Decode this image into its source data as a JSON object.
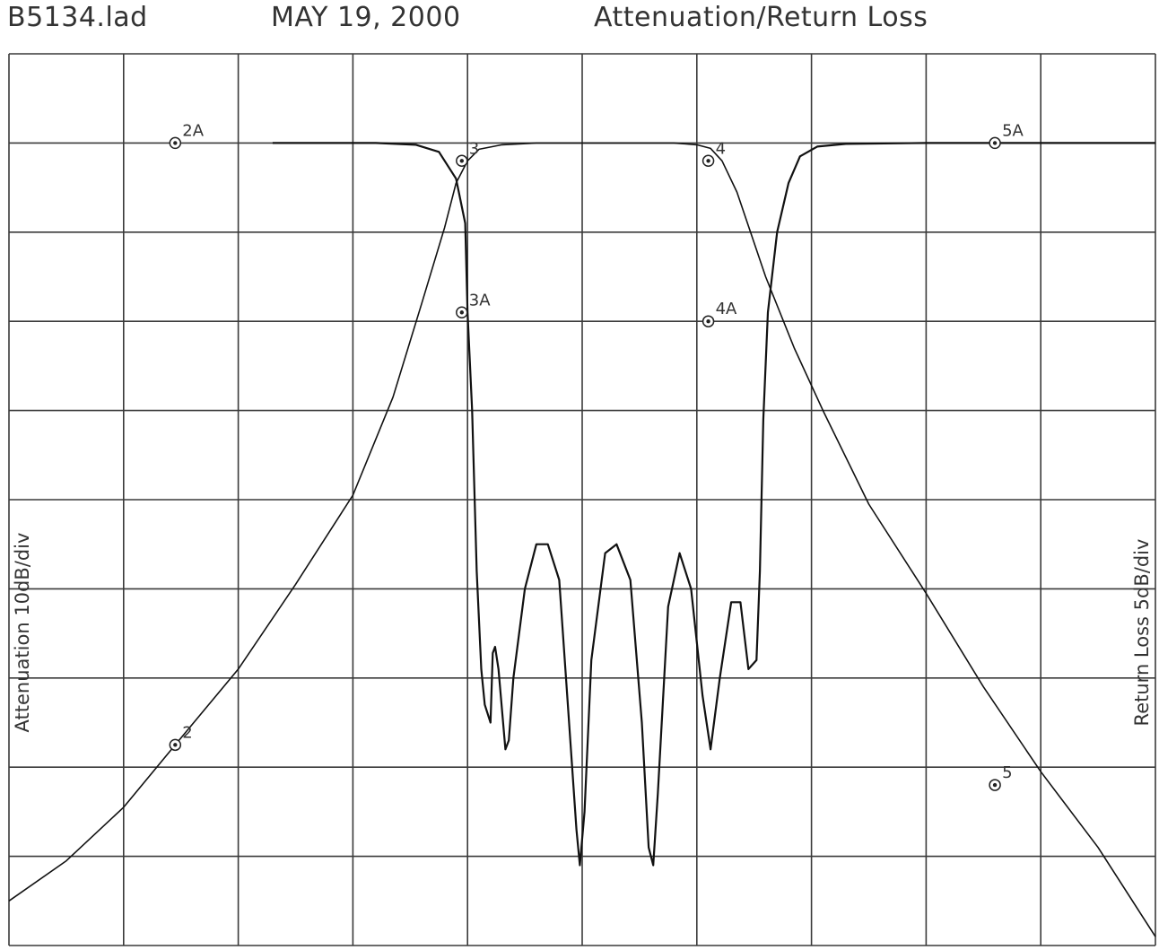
{
  "header": {
    "file": "B5134.lad",
    "date": "MAY 19, 2000",
    "title": "Attenuation/Return Loss"
  },
  "chart_data": {
    "type": "line",
    "title": "Attenuation/Return Loss",
    "ylabel_left": "Attenuation 10dB/div",
    "ylabel_right": "Return Loss 5dB/div",
    "grid": true,
    "x_divisions": 10,
    "y_divisions": 10,
    "x_range_div": [
      0,
      10
    ],
    "y_range_div": [
      0,
      10
    ],
    "series": [
      {
        "points": [
          [
            0,
            9.5
          ],
          [
            0.5,
            9.05
          ],
          [
            1,
            8.45
          ],
          [
            1.45,
            7.75
          ],
          [
            2,
            6.9
          ],
          [
            2.5,
            5.95
          ],
          [
            3,
            4.95
          ],
          [
            3.35,
            3.85
          ],
          [
            3.6,
            2.8
          ],
          [
            3.8,
            1.95
          ],
          [
            3.9,
            1.45
          ],
          [
            4.0,
            1.2
          ],
          [
            4.1,
            1.07
          ],
          [
            4.3,
            1.02
          ],
          [
            4.6,
            1.0
          ],
          [
            5,
            1.0
          ],
          [
            5.5,
            1.0
          ],
          [
            5.8,
            1.0
          ],
          [
            6.0,
            1.02
          ],
          [
            6.12,
            1.06
          ],
          [
            6.22,
            1.2
          ],
          [
            6.35,
            1.55
          ],
          [
            6.6,
            2.5
          ],
          [
            6.85,
            3.3
          ],
          [
            7.1,
            4.0
          ],
          [
            7.5,
            5.05
          ],
          [
            8,
            6.05
          ],
          [
            8.5,
            7.1
          ],
          [
            9,
            8.05
          ],
          [
            9.5,
            8.9
          ],
          [
            10,
            9.9
          ]
        ]
      },
      {
        "points": [
          [
            2.3,
            1.0
          ],
          [
            3.2,
            1.0
          ],
          [
            3.55,
            1.02
          ],
          [
            3.75,
            1.1
          ],
          [
            3.9,
            1.4
          ],
          [
            3.98,
            1.9
          ],
          [
            4.0,
            2.9
          ],
          [
            4.04,
            4.0
          ],
          [
            4.08,
            5.8
          ],
          [
            4.12,
            6.9
          ],
          [
            4.15,
            7.3
          ],
          [
            4.2,
            7.5
          ],
          [
            4.22,
            6.72
          ],
          [
            4.24,
            6.65
          ],
          [
            4.27,
            6.9
          ],
          [
            4.33,
            7.8
          ],
          [
            4.36,
            7.7
          ],
          [
            4.4,
            7.0
          ],
          [
            4.5,
            6.0
          ],
          [
            4.6,
            5.5
          ],
          [
            4.7,
            5.5
          ],
          [
            4.8,
            5.9
          ],
          [
            4.88,
            7.4
          ],
          [
            4.95,
            8.7
          ],
          [
            4.98,
            9.1
          ],
          [
            5.02,
            8.5
          ],
          [
            5.08,
            6.8
          ],
          [
            5.2,
            5.6
          ],
          [
            5.3,
            5.5
          ],
          [
            5.42,
            5.9
          ],
          [
            5.52,
            7.5
          ],
          [
            5.58,
            8.9
          ],
          [
            5.62,
            9.1
          ],
          [
            5.66,
            8.3
          ],
          [
            5.75,
            6.2
          ],
          [
            5.85,
            5.6
          ],
          [
            5.95,
            6.0
          ],
          [
            6.05,
            7.2
          ],
          [
            6.12,
            7.8
          ],
          [
            6.2,
            7.0
          ],
          [
            6.3,
            6.15
          ],
          [
            6.38,
            6.15
          ],
          [
            6.45,
            6.9
          ],
          [
            6.52,
            6.8
          ],
          [
            6.55,
            5.8
          ],
          [
            6.58,
            4.1
          ],
          [
            6.62,
            2.9
          ],
          [
            6.7,
            2.0
          ],
          [
            6.8,
            1.45
          ],
          [
            6.9,
            1.15
          ],
          [
            7.05,
            1.04
          ],
          [
            7.3,
            1.01
          ],
          [
            8,
            1.0
          ],
          [
            9,
            1.0
          ],
          [
            10,
            1.0
          ]
        ]
      }
    ],
    "markers": [
      {
        "label": "2A",
        "x": 1.45,
        "y": 1.0
      },
      {
        "label": "3",
        "x": 3.95,
        "y": 1.2
      },
      {
        "label": "4",
        "x": 6.1,
        "y": 1.2
      },
      {
        "label": "5A",
        "x": 8.6,
        "y": 1.0
      },
      {
        "label": "3A",
        "x": 3.95,
        "y": 2.9
      },
      {
        "label": "4A",
        "x": 6.1,
        "y": 3.0
      },
      {
        "label": "2",
        "x": 1.45,
        "y": 7.75
      },
      {
        "label": "5",
        "x": 8.6,
        "y": 8.2
      }
    ]
  }
}
